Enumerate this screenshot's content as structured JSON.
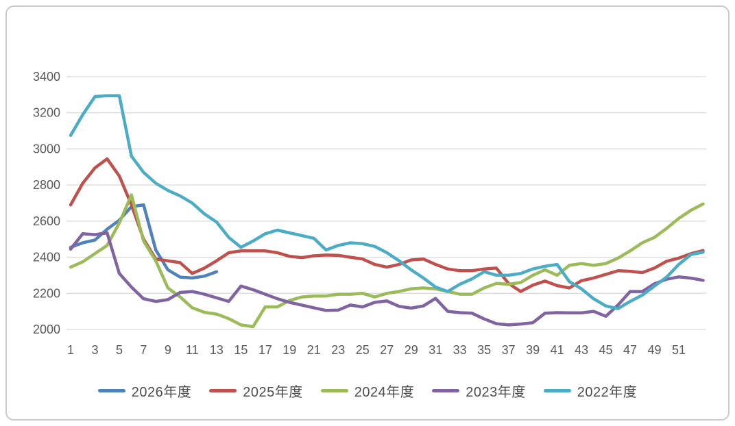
{
  "chart_data": {
    "type": "line",
    "title": "",
    "xlabel": "",
    "ylabel": "",
    "x_weeks": [
      1,
      2,
      3,
      4,
      5,
      6,
      7,
      8,
      9,
      10,
      11,
      12,
      13,
      14,
      15,
      16,
      17,
      18,
      19,
      20,
      21,
      22,
      23,
      24,
      25,
      26,
      27,
      28,
      29,
      30,
      31,
      32,
      33,
      34,
      35,
      36,
      37,
      38,
      39,
      40,
      41,
      42,
      43,
      44,
      45,
      46,
      47,
      48,
      49,
      50,
      51,
      52,
      53
    ],
    "x_tick_labels": [
      "1",
      "3",
      "5",
      "7",
      "9",
      "11",
      "13",
      "15",
      "17",
      "19",
      "21",
      "23",
      "25",
      "27",
      "29",
      "31",
      "33",
      "35",
      "37",
      "39",
      "41",
      "43",
      "45",
      "47",
      "49",
      "51"
    ],
    "x_tick_weeks": [
      1,
      3,
      5,
      7,
      9,
      11,
      13,
      15,
      17,
      19,
      21,
      23,
      25,
      27,
      29,
      31,
      33,
      35,
      37,
      39,
      41,
      43,
      45,
      47,
      49,
      51
    ],
    "ylim": [
      2000,
      3400
    ],
    "y_ticks": [
      3400,
      3200,
      3000,
      2800,
      2600,
      2400,
      2200,
      2000
    ],
    "y_tick_labels": [
      "3400",
      "3200",
      "3000",
      "2800",
      "2600",
      "2400",
      "2200",
      "2000"
    ],
    "grid": "horizontal",
    "gridline_color": "#D9D9D9",
    "axis_label_color": "#595959",
    "legend_position": "bottom",
    "series": [
      {
        "name": "2026年度",
        "color": "#4F81BD",
        "start_week": 1,
        "values": [
          2455,
          2480,
          2495,
          2555,
          2605,
          2680,
          2690,
          2440,
          2330,
          2290,
          2285,
          2295,
          2320
        ]
      },
      {
        "name": "2025年度",
        "color": "#C0504D",
        "start_week": 1,
        "values": [
          2690,
          2810,
          2895,
          2945,
          2850,
          2690,
          2500,
          2390,
          2380,
          2370,
          2310,
          2340,
          2380,
          2425,
          2435,
          2435,
          2435,
          2425,
          2405,
          2398,
          2408,
          2412,
          2410,
          2400,
          2390,
          2360,
          2345,
          2360,
          2385,
          2390,
          2360,
          2335,
          2325,
          2325,
          2335,
          2340,
          2255,
          2210,
          2245,
          2268,
          2243,
          2230,
          2270,
          2285,
          2305,
          2325,
          2322,
          2315,
          2340,
          2378,
          2395,
          2420,
          2437
        ]
      },
      {
        "name": "2024年度",
        "color": "#9BBB59",
        "start_week": 1,
        "values": [
          2345,
          2375,
          2420,
          2465,
          2590,
          2745,
          2490,
          2380,
          2230,
          2180,
          2120,
          2095,
          2085,
          2060,
          2025,
          2015,
          2125,
          2125,
          2160,
          2180,
          2185,
          2185,
          2195,
          2195,
          2200,
          2180,
          2200,
          2210,
          2225,
          2230,
          2225,
          2210,
          2195,
          2195,
          2230,
          2255,
          2250,
          2260,
          2300,
          2330,
          2300,
          2355,
          2365,
          2355,
          2365,
          2395,
          2435,
          2480,
          2510,
          2560,
          2615,
          2660,
          2695
        ]
      },
      {
        "name": "2023年度",
        "color": "#8064A2",
        "start_week": 1,
        "values": [
          2445,
          2530,
          2525,
          2535,
          2310,
          2235,
          2170,
          2155,
          2165,
          2205,
          2210,
          2195,
          2175,
          2155,
          2240,
          2220,
          2195,
          2170,
          2150,
          2135,
          2120,
          2105,
          2107,
          2135,
          2125,
          2150,
          2158,
          2128,
          2118,
          2130,
          2172,
          2100,
          2093,
          2090,
          2058,
          2032,
          2025,
          2030,
          2037,
          2090,
          2093,
          2092,
          2092,
          2100,
          2073,
          2135,
          2210,
          2210,
          2253,
          2278,
          2291,
          2284,
          2272
        ]
      },
      {
        "name": "2022年度",
        "color": "#4BACC6",
        "start_week": 1,
        "values": [
          3075,
          3190,
          3290,
          3295,
          3295,
          2960,
          2870,
          2810,
          2770,
          2740,
          2700,
          2640,
          2595,
          2510,
          2455,
          2490,
          2530,
          2550,
          2535,
          2520,
          2505,
          2440,
          2465,
          2480,
          2475,
          2460,
          2425,
          2380,
          2330,
          2285,
          2235,
          2210,
          2250,
          2280,
          2320,
          2300,
          2300,
          2310,
          2335,
          2350,
          2360,
          2265,
          2225,
          2170,
          2130,
          2115,
          2155,
          2190,
          2240,
          2290,
          2360,
          2415,
          2428
        ]
      }
    ]
  }
}
